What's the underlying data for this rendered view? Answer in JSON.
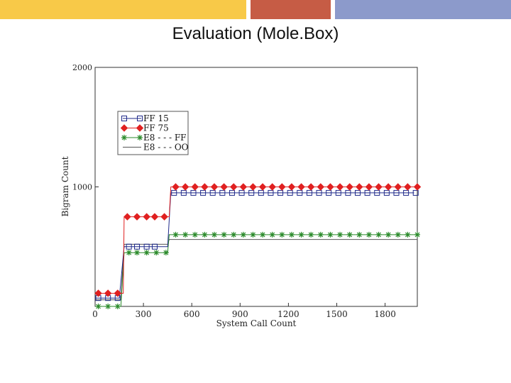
{
  "slide": {
    "title": "Evaluation  (Mole.Box)",
    "accent_bars": [
      "#f8c948",
      "#c65c45",
      "#8c9acb"
    ]
  },
  "chart_data": {
    "type": "line",
    "xlabel": "System Call Count",
    "ylabel": "Bigram Count",
    "xlim": [
      0,
      2000
    ],
    "ylim": [
      0,
      2000
    ],
    "xticks": [
      0,
      300,
      600,
      900,
      1200,
      1500,
      1800
    ],
    "yticks": [
      1000,
      2000
    ],
    "grid": false,
    "legend_position": "upper-left",
    "series": [
      {
        "name": "FF 15",
        "color": "#1f2a8a",
        "marker": "square",
        "x": [
          0,
          30,
          90,
          150,
          180,
          200,
          260,
          300,
          450,
          470,
          520,
          1980
        ],
        "y": [
          70,
          70,
          70,
          70,
          500,
          500,
          500,
          500,
          500,
          950,
          950,
          950
        ],
        "marker_x": [
          20,
          80,
          140,
          210,
          260,
          320,
          370,
          490,
          550,
          610,
          670,
          730,
          790,
          850,
          910,
          970,
          1030,
          1090,
          1150,
          1210,
          1270,
          1330,
          1390,
          1450,
          1510,
          1570,
          1630,
          1690,
          1750,
          1810,
          1870,
          1930,
          1990
        ]
      },
      {
        "name": "FF 75",
        "color": "#e02020",
        "marker": "diamond",
        "x": [
          0,
          150,
          175,
          180,
          450,
          460,
          470,
          2000
        ],
        "y": [
          110,
          110,
          110,
          750,
          750,
          750,
          1000,
          1000
        ],
        "marker_x": [
          20,
          80,
          140,
          200,
          260,
          320,
          370,
          430,
          500,
          560,
          620,
          680,
          740,
          800,
          860,
          920,
          980,
          1040,
          1100,
          1160,
          1220,
          1280,
          1340,
          1400,
          1460,
          1520,
          1580,
          1640,
          1700,
          1760,
          1820,
          1880,
          1940,
          2000
        ]
      },
      {
        "name": "E8 - - - FF",
        "color": "#2a8a2a",
        "marker": "asterisk",
        "x": [
          0,
          160,
          180,
          450,
          460,
          2000
        ],
        "y": [
          0,
          0,
          450,
          450,
          600,
          600
        ],
        "marker_x": [
          20,
          80,
          140,
          210,
          260,
          320,
          380,
          440,
          500,
          560,
          620,
          680,
          740,
          800,
          860,
          920,
          980,
          1040,
          1100,
          1160,
          1220,
          1280,
          1340,
          1400,
          1460,
          1520,
          1580,
          1640,
          1700,
          1760,
          1820,
          1880,
          1940,
          2000
        ]
      },
      {
        "name": "E8 - - - OO",
        "color": "#555555",
        "marker": "none",
        "x": [
          0,
          160,
          180,
          450,
          460,
          2000
        ],
        "y": [
          55,
          55,
          520,
          520,
          560,
          560
        ],
        "marker_x": []
      }
    ]
  }
}
